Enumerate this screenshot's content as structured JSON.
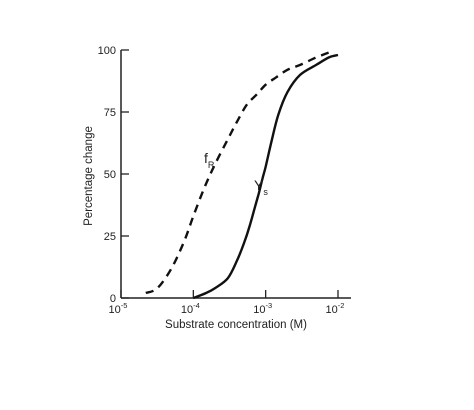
{
  "chart_data": {
    "type": "line",
    "x_scale": "log",
    "xlabel": "Substrate concentration (M)",
    "ylabel": "Percentage change",
    "xlim": [
      1e-05,
      0.01
    ],
    "ylim": [
      0,
      100
    ],
    "grid": false,
    "legend": "none",
    "x_ticks": [
      {
        "value": 1e-05,
        "base": "10",
        "exp": "-5"
      },
      {
        "value": 0.0001,
        "base": "10",
        "exp": "-4"
      },
      {
        "value": 0.001,
        "base": "10",
        "exp": "-3"
      },
      {
        "value": 0.01,
        "base": "10",
        "exp": "-2"
      }
    ],
    "y_ticks": [
      {
        "value": 0,
        "label": "0"
      },
      {
        "value": 25,
        "label": "25"
      },
      {
        "value": 50,
        "label": "50"
      },
      {
        "value": 75,
        "label": "75"
      },
      {
        "value": 100,
        "label": "100"
      }
    ],
    "series": [
      {
        "label_main": "f",
        "label_sub": "R",
        "style": "dashed",
        "x": [
          2.2e-05,
          3.2e-05,
          5e-05,
          7.5e-05,
          0.0001,
          0.00014,
          0.0002,
          0.0003,
          0.0004,
          0.00055,
          0.00075,
          0.001,
          0.0014,
          0.002,
          0.003,
          0.005,
          0.0075
        ],
        "y": [
          2,
          4,
          12,
          23,
          33,
          44,
          54,
          64,
          71,
          78,
          82,
          86,
          89,
          92,
          94,
          97,
          99
        ]
      },
      {
        "label_main": "Y",
        "label_sub": "s",
        "style": "solid",
        "x": [
          0.0001,
          0.00015,
          0.0002,
          0.0003,
          0.0004,
          0.0005,
          0.0006,
          0.0007,
          0.0008,
          0.0009,
          0.001,
          0.0012,
          0.0015,
          0.002,
          0.003,
          0.005,
          0.0075,
          0.01
        ],
        "y": [
          0,
          2,
          4,
          8,
          15,
          22,
          29,
          36,
          42,
          48,
          53,
          63,
          74,
          83,
          90,
          94,
          97,
          98
        ]
      }
    ]
  }
}
